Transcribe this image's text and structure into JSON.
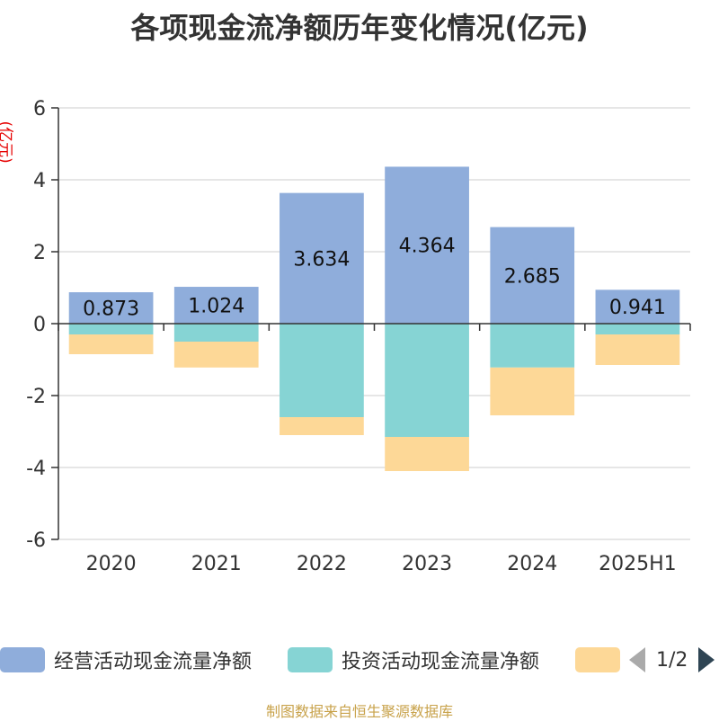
{
  "title": "各项现金流净额历年变化情况(亿元)",
  "unit_label": "(亿元)",
  "source": "制图数据来自恒生聚源数据库",
  "pager": {
    "text": "1/2"
  },
  "chart_data": {
    "type": "bar",
    "stacked": true,
    "categories": [
      "2020",
      "2021",
      "2022",
      "2023",
      "2024",
      "2025H1"
    ],
    "ylim": [
      -6,
      6
    ],
    "yticks": [
      6,
      4,
      2,
      0,
      -2,
      -4,
      -6
    ],
    "grid": true,
    "legend_position": "bottom",
    "series": [
      {
        "name": "经营活动现金流量净额",
        "color": "#8faddb",
        "values": [
          0.873,
          1.024,
          3.634,
          4.364,
          2.685,
          0.941
        ],
        "labels": [
          "0.873",
          "1.024",
          "3.634",
          "4.364",
          "2.685",
          "0.941"
        ]
      },
      {
        "name": "投资活动现金流量净额",
        "color": "#86d4d4",
        "values": [
          -0.3,
          -0.5,
          -2.6,
          -3.15,
          -1.22,
          -0.3
        ]
      },
      {
        "name": "",
        "color": "#fdd897",
        "values": [
          -0.55,
          -0.72,
          -0.5,
          -0.95,
          -1.33,
          -0.85
        ]
      }
    ]
  }
}
